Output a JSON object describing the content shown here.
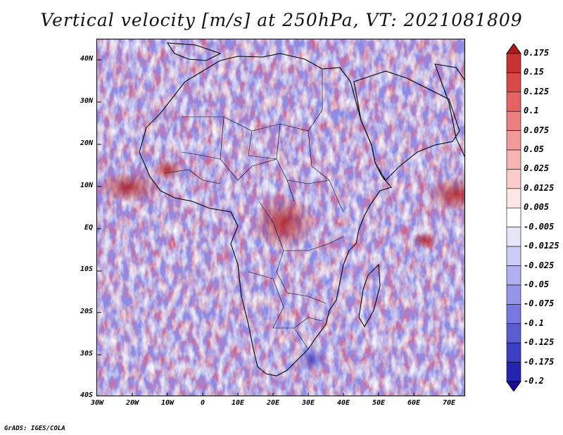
{
  "title": "Vertical velocity [m/s] at 250hPa, VT: 2021081809",
  "map": {
    "lat_labels": [
      "40N",
      "30N",
      "20N",
      "10N",
      "EQ",
      "10S",
      "20S",
      "30S",
      "40S"
    ],
    "lon_labels": [
      "30W",
      "20W",
      "10W",
      "0",
      "10E",
      "20E",
      "30E",
      "40E",
      "50E",
      "60E",
      "70E"
    ],
    "extent": {
      "lon_min": -30,
      "lon_max": 75,
      "lat_min": -40,
      "lat_max": 45
    }
  },
  "colorbar": {
    "labels": [
      "0.175",
      "0.15",
      "0.125",
      "0.1",
      "0.075",
      "0.05",
      "0.025",
      "0.0125",
      "0.005",
      "-0.005",
      "-0.0125",
      "-0.025",
      "-0.05",
      "-0.075",
      "-0.1",
      "-0.125",
      "-0.175",
      "-0.2"
    ],
    "colors": [
      "#b01a1a",
      "#c83232",
      "#d84a4a",
      "#e46464",
      "#ec8080",
      "#f29a9a",
      "#f6b4b4",
      "#facccc",
      "#fde6e6",
      "#ffffff",
      "#e6e6fb",
      "#ccccf6",
      "#b0b0f0",
      "#9494e8",
      "#7878de",
      "#5c5cd2",
      "#3e3ec4",
      "#2424b0",
      "#1a0a9e"
    ]
  },
  "credit": "GrADS: IGES/COLA"
}
